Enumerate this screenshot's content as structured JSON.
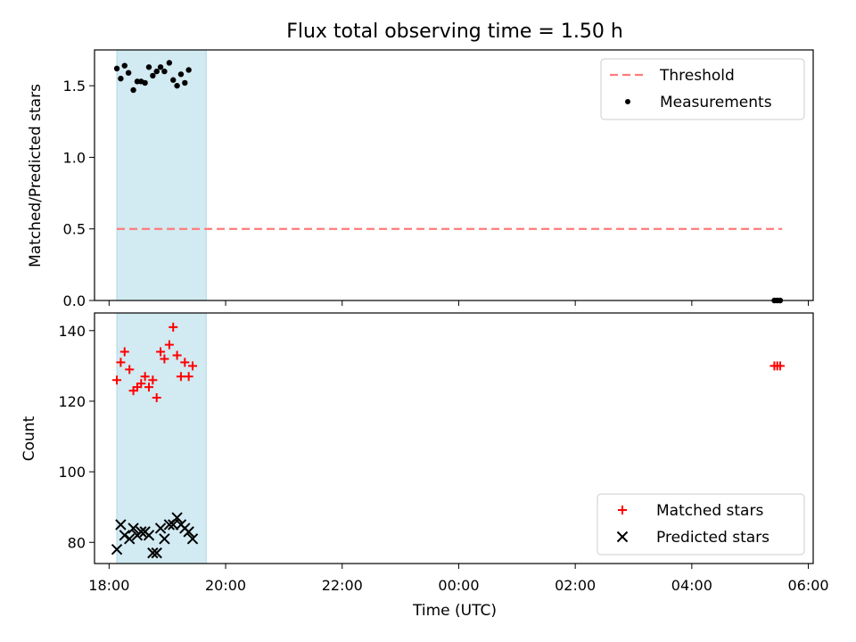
{
  "figure": {
    "title": "Flux total observing time = 1.50 h",
    "shaded_interval": [
      "18:08",
      "19:40"
    ],
    "shade_color": "#add8e6"
  },
  "chart_data": [
    {
      "type": "scatter",
      "panel": "top",
      "ylabel": "Matched/Predicted stars",
      "xlabel": "",
      "x_axis_time": true,
      "xlim": [
        "17:45",
        "06:05"
      ],
      "ylim": [
        0,
        1.75
      ],
      "yticks": [
        0.0,
        0.5,
        1.0,
        1.5
      ],
      "ytick_labels": [
        "0.0",
        "0.5",
        "1.0",
        "1.5"
      ],
      "legend_position": "top-right",
      "series": [
        {
          "name": "Threshold",
          "style": "dashed-line",
          "color": "#ff7b7b",
          "points": [
            [
              "18:08",
              0.5
            ],
            [
              "05:33",
              0.5
            ]
          ]
        },
        {
          "name": "Measurements",
          "style": "dot",
          "color": "#000000",
          "points": [
            [
              "18:08",
              1.62
            ],
            [
              "18:12",
              1.55
            ],
            [
              "18:16",
              1.64
            ],
            [
              "18:20",
              1.59
            ],
            [
              "18:25",
              1.47
            ],
            [
              "18:29",
              1.53
            ],
            [
              "18:33",
              1.53
            ],
            [
              "18:37",
              1.52
            ],
            [
              "18:41",
              1.63
            ],
            [
              "18:45",
              1.57
            ],
            [
              "18:49",
              1.6
            ],
            [
              "18:53",
              1.63
            ],
            [
              "18:57",
              1.6
            ],
            [
              "19:02",
              1.66
            ],
            [
              "19:06",
              1.54
            ],
            [
              "19:10",
              1.5
            ],
            [
              "19:14",
              1.58
            ],
            [
              "19:18",
              1.52
            ],
            [
              "19:22",
              1.61
            ],
            [
              "05:25",
              0.0
            ],
            [
              "05:28",
              0.0
            ],
            [
              "05:31",
              0.0
            ]
          ]
        }
      ]
    },
    {
      "type": "scatter",
      "panel": "bottom",
      "ylabel": "Count",
      "xlabel": "Time (UTC)",
      "x_axis_time": true,
      "xlim": [
        "17:45",
        "06:05"
      ],
      "ylim": [
        74,
        145
      ],
      "yticks": [
        80,
        100,
        120,
        140
      ],
      "ytick_labels": [
        "80",
        "100",
        "120",
        "140"
      ],
      "xticks": [
        "18:00",
        "20:00",
        "22:00",
        "00:00",
        "02:00",
        "04:00",
        "06:00"
      ],
      "legend_position": "bottom-right",
      "series": [
        {
          "name": "Matched stars",
          "marker": "plus",
          "color": "#ff0000",
          "points": [
            [
              "18:08",
              126
            ],
            [
              "18:12",
              131
            ],
            [
              "18:16",
              134
            ],
            [
              "18:21",
              129
            ],
            [
              "18:25",
              123
            ],
            [
              "18:29",
              124
            ],
            [
              "18:33",
              125
            ],
            [
              "18:37",
              127
            ],
            [
              "18:41",
              124
            ],
            [
              "18:45",
              126
            ],
            [
              "18:49",
              121
            ],
            [
              "18:53",
              134
            ],
            [
              "18:57",
              132
            ],
            [
              "19:02",
              136
            ],
            [
              "19:06",
              141
            ],
            [
              "19:10",
              133
            ],
            [
              "19:14",
              127
            ],
            [
              "19:18",
              131
            ],
            [
              "19:22",
              127
            ],
            [
              "19:26",
              130
            ],
            [
              "05:25",
              130
            ],
            [
              "05:28",
              130
            ],
            [
              "05:31",
              130
            ]
          ]
        },
        {
          "name": "Predicted stars",
          "marker": "x",
          "color": "#000000",
          "points": [
            [
              "18:08",
              78
            ],
            [
              "18:12",
              85
            ],
            [
              "18:16",
              82
            ],
            [
              "18:21",
              81
            ],
            [
              "18:25",
              84
            ],
            [
              "18:29",
              82
            ],
            [
              "18:33",
              83
            ],
            [
              "18:37",
              83
            ],
            [
              "18:41",
              82
            ],
            [
              "18:45",
              77
            ],
            [
              "18:49",
              77
            ],
            [
              "18:53",
              84
            ],
            [
              "18:57",
              81
            ],
            [
              "19:02",
              85
            ],
            [
              "19:06",
              85
            ],
            [
              "19:10",
              87
            ],
            [
              "19:14",
              85
            ],
            [
              "19:18",
              84
            ],
            [
              "19:22",
              83
            ],
            [
              "19:26",
              81
            ]
          ]
        }
      ]
    }
  ]
}
